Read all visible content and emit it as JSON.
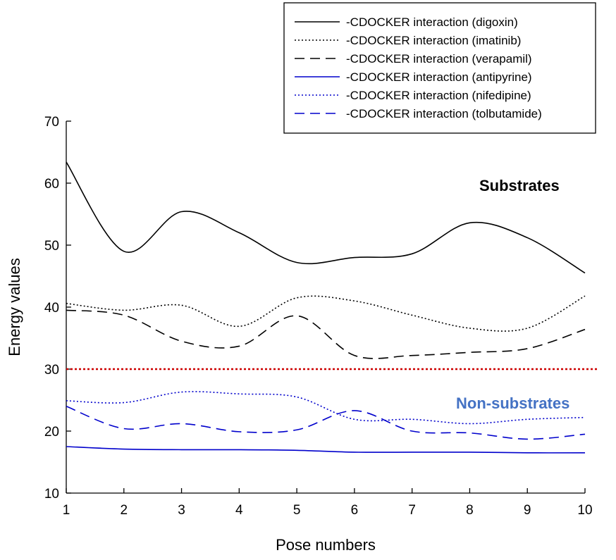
{
  "chart_data": {
    "type": "line",
    "x": [
      1,
      2,
      3,
      4,
      5,
      6,
      7,
      8,
      9,
      10
    ],
    "xlabel": "Pose numbers",
    "ylabel": "Energy values",
    "xlim": [
      1,
      10
    ],
    "ylim": [
      10,
      70
    ],
    "xticks": [
      "1",
      "2",
      "3",
      "4",
      "5",
      "6",
      "7",
      "8",
      "9",
      "10"
    ],
    "yticks": [
      "10",
      "20",
      "30",
      "40",
      "50",
      "60",
      "70"
    ],
    "grid": false,
    "legend_position": "top-right",
    "series": [
      {
        "name": "-CDOCKER interaction (digoxin)",
        "values": [
          63.4,
          49.0,
          55.4,
          52.0,
          47.2,
          48.0,
          48.6,
          53.6,
          51.2,
          45.5
        ],
        "color": "#000000",
        "dash": "solid"
      },
      {
        "name": "-CDOCKER interaction (imatinib)",
        "values": [
          40.6,
          39.5,
          40.3,
          36.9,
          41.5,
          41.0,
          38.7,
          36.6,
          36.6,
          41.8
        ],
        "color": "#000000",
        "dash": "dotted"
      },
      {
        "name": "-CDOCKER interaction (verapamil)",
        "values": [
          39.5,
          38.7,
          34.5,
          33.7,
          38.6,
          32.2,
          32.2,
          32.7,
          33.3,
          36.4
        ],
        "color": "#000000",
        "dash": "dashed"
      },
      {
        "name": "-CDOCKER interaction (antipyrine)",
        "values": [
          17.5,
          17.1,
          17.0,
          17.0,
          16.9,
          16.6,
          16.6,
          16.6,
          16.5,
          16.5
        ],
        "color": "#0000cc",
        "dash": "solid"
      },
      {
        "name": "-CDOCKER interaction (nifedipine)",
        "values": [
          24.9,
          24.6,
          26.3,
          26.0,
          25.5,
          21.9,
          21.9,
          21.2,
          21.9,
          22.2
        ],
        "color": "#0000cc",
        "dash": "dotted"
      },
      {
        "name": "-CDOCKER interaction (tolbutamide)",
        "values": [
          24.0,
          20.4,
          21.2,
          19.9,
          20.2,
          23.3,
          20.0,
          19.7,
          18.7,
          19.5
        ],
        "color": "#0000cc",
        "dash": "dashed"
      }
    ],
    "reference_line": {
      "y": 30,
      "color": "#cc0000",
      "style": "dotted"
    },
    "annotations": [
      {
        "text": "Substrates",
        "color": "#000000"
      },
      {
        "text": "Non-substrates",
        "color": "#4472c4"
      }
    ]
  }
}
